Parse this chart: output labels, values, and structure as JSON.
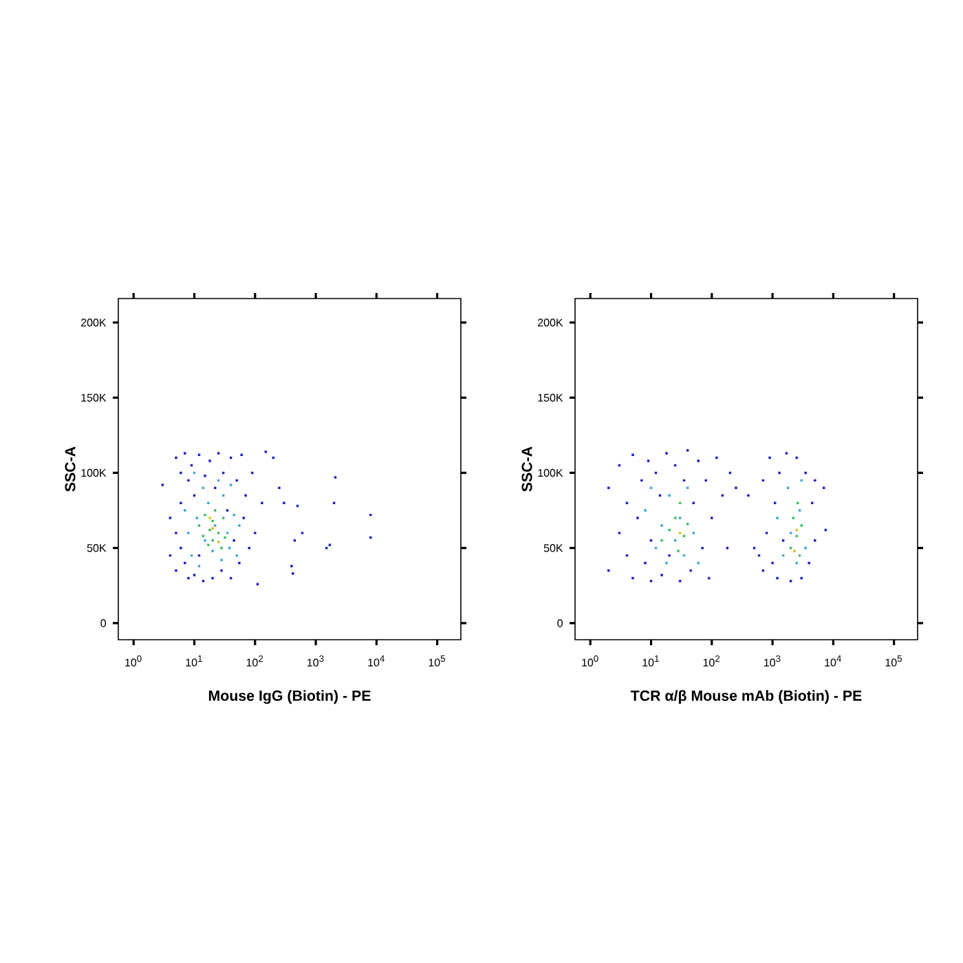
{
  "chart_data": [
    {
      "type": "scatter",
      "xlabel": "Mouse IgG (Biotin) - PE",
      "ylabel": "SSC-A",
      "log": "x",
      "marker": "square",
      "xlim": [
        0.56,
        245000
      ],
      "ylim": [
        -11000,
        216000
      ],
      "xticks": [
        {
          "value": 1,
          "label": "10$^{0}$"
        },
        {
          "value": 10,
          "label": "10$^{1}$"
        },
        {
          "value": 100,
          "label": "10$^{2}$"
        },
        {
          "value": 1000,
          "label": "10$^{3}$"
        },
        {
          "value": 10000,
          "label": "10$^{4}$"
        },
        {
          "value": 100000,
          "label": "10$^{5}$"
        }
      ],
      "yticks": [
        0,
        {
          "value": 50000,
          "label": "50K"
        },
        {
          "value": 100000,
          "label": "100K"
        },
        {
          "value": 150000,
          "label": "150K"
        },
        {
          "value": 200000,
          "label": "200K"
        }
      ],
      "series": [
        {
          "color": "#2020c8",
          "x": [
            3,
            4,
            4,
            5,
            5,
            5,
            6,
            6,
            6,
            7,
            7,
            8,
            8,
            9,
            10,
            10,
            12,
            12,
            14,
            15,
            18,
            20,
            22,
            25,
            28,
            30,
            35,
            40,
            40,
            45,
            50,
            55,
            60,
            65,
            70,
            80,
            90,
            100,
            110,
            130,
            150,
            200,
            250,
            300,
            400,
            420,
            450,
            500,
            600,
            1500,
            1700,
            2000,
            2100,
            8000,
            8000
          ],
          "values": [
            92000,
            70000,
            45000,
            110000,
            60000,
            35000,
            100000,
            80000,
            50000,
            113000,
            40000,
            95000,
            30000,
            105000,
            85000,
            32000,
            112000,
            45000,
            28000,
            98000,
            108000,
            30000,
            90000,
            113000,
            35000,
            100000,
            75000,
            110000,
            30000,
            55000,
            95000,
            40000,
            112000,
            70000,
            85000,
            50000,
            100000,
            60000,
            26000,
            80000,
            114000,
            110000,
            90000,
            80000,
            38000,
            33000,
            55000,
            78000,
            60000,
            50000,
            52000,
            80000,
            97000,
            72000,
            57000
          ]
        },
        {
          "color": "#40a8d8",
          "x": [
            7,
            8,
            9,
            10,
            11,
            12,
            14,
            15,
            17,
            20,
            22,
            25,
            28,
            30,
            35,
            38,
            40,
            45,
            50,
            55
          ],
          "values": [
            75000,
            60000,
            45000,
            100000,
            70000,
            38000,
            90000,
            55000,
            80000,
            48000,
            65000,
            95000,
            42000,
            85000,
            60000,
            50000,
            92000,
            72000,
            45000,
            65000
          ]
        },
        {
          "color": "#40c060",
          "x": [
            12,
            14,
            15,
            17,
            18,
            20,
            20,
            22,
            25,
            28,
            30,
            32
          ],
          "values": [
            65000,
            58000,
            72000,
            52000,
            62000,
            68000,
            55000,
            75000,
            60000,
            50000,
            70000,
            57000
          ]
        },
        {
          "color": "#e0c020",
          "x": [
            20,
            25,
            18
          ],
          "values": [
            63000,
            54000,
            70000
          ]
        }
      ]
    },
    {
      "type": "scatter",
      "xlabel": "TCR α/β Mouse mAb (Biotin) - PE",
      "ylabel": "SSC-A",
      "log": "x",
      "marker": "square",
      "xlim": [
        0.56,
        245000
      ],
      "ylim": [
        -11000,
        216000
      ],
      "xticks": [
        {
          "value": 1,
          "label": "10$^{0}$"
        },
        {
          "value": 10,
          "label": "10$^{1}$"
        },
        {
          "value": 100,
          "label": "10$^{2}$"
        },
        {
          "value": 1000,
          "label": "10$^{3}$"
        },
        {
          "value": 10000,
          "label": "10$^{4}$"
        },
        {
          "value": 100000,
          "label": "10$^{5}$"
        }
      ],
      "yticks": [
        0,
        {
          "value": 50000,
          "label": "50K"
        },
        {
          "value": 100000,
          "label": "100K"
        },
        {
          "value": 150000,
          "label": "150K"
        },
        {
          "value": 200000,
          "label": "200K"
        }
      ],
      "series": [
        {
          "color": "#2020c8",
          "x": [
            2,
            2,
            3,
            3,
            4,
            4,
            5,
            5,
            6,
            7,
            8,
            9,
            10,
            10,
            12,
            14,
            15,
            18,
            20,
            25,
            30,
            35,
            40,
            45,
            50,
            60,
            70,
            80,
            90,
            100,
            120,
            150,
            180,
            200,
            250,
            400,
            500,
            600,
            700,
            700,
            800,
            900,
            1000,
            1100,
            1200,
            1300,
            1500,
            1700,
            2000,
            2500,
            3000,
            3500,
            4000,
            4500,
            5000,
            5000,
            7000,
            7500
          ],
          "values": [
            90000,
            35000,
            105000,
            60000,
            45000,
            80000,
            112000,
            30000,
            70000,
            95000,
            40000,
            108000,
            55000,
            28000,
            100000,
            85000,
            32000,
            113000,
            45000,
            105000,
            28000,
            95000,
            115000,
            35000,
            80000,
            108000,
            50000,
            95000,
            30000,
            70000,
            110000,
            85000,
            50000,
            100000,
            90000,
            85000,
            50000,
            45000,
            35000,
            95000,
            60000,
            110000,
            40000,
            80000,
            30000,
            100000,
            55000,
            113000,
            28000,
            110000,
            30000,
            100000,
            40000,
            80000,
            95000,
            55000,
            90000,
            62000
          ]
        },
        {
          "color": "#40a8d8",
          "x": [
            8,
            10,
            12,
            15,
            18,
            20,
            25,
            30,
            35,
            40,
            50,
            60,
            1200,
            1500,
            1800,
            2000,
            2500,
            2800,
            3000,
            3500
          ],
          "values": [
            75000,
            90000,
            50000,
            65000,
            40000,
            85000,
            55000,
            70000,
            45000,
            90000,
            60000,
            40000,
            70000,
            45000,
            90000,
            60000,
            40000,
            75000,
            95000,
            50000
          ]
        },
        {
          "color": "#40c060",
          "x": [
            15,
            20,
            25,
            28,
            30,
            35,
            40,
            2000,
            2200,
            2500,
            2800,
            3000,
            2600
          ],
          "values": [
            55000,
            62000,
            70000,
            48000,
            80000,
            58000,
            66000,
            50000,
            70000,
            58000,
            45000,
            65000,
            80000
          ]
        },
        {
          "color": "#e0c020",
          "x": [
            30,
            2500,
            2300
          ],
          "values": [
            60000,
            62000,
            48000
          ]
        }
      ]
    }
  ]
}
